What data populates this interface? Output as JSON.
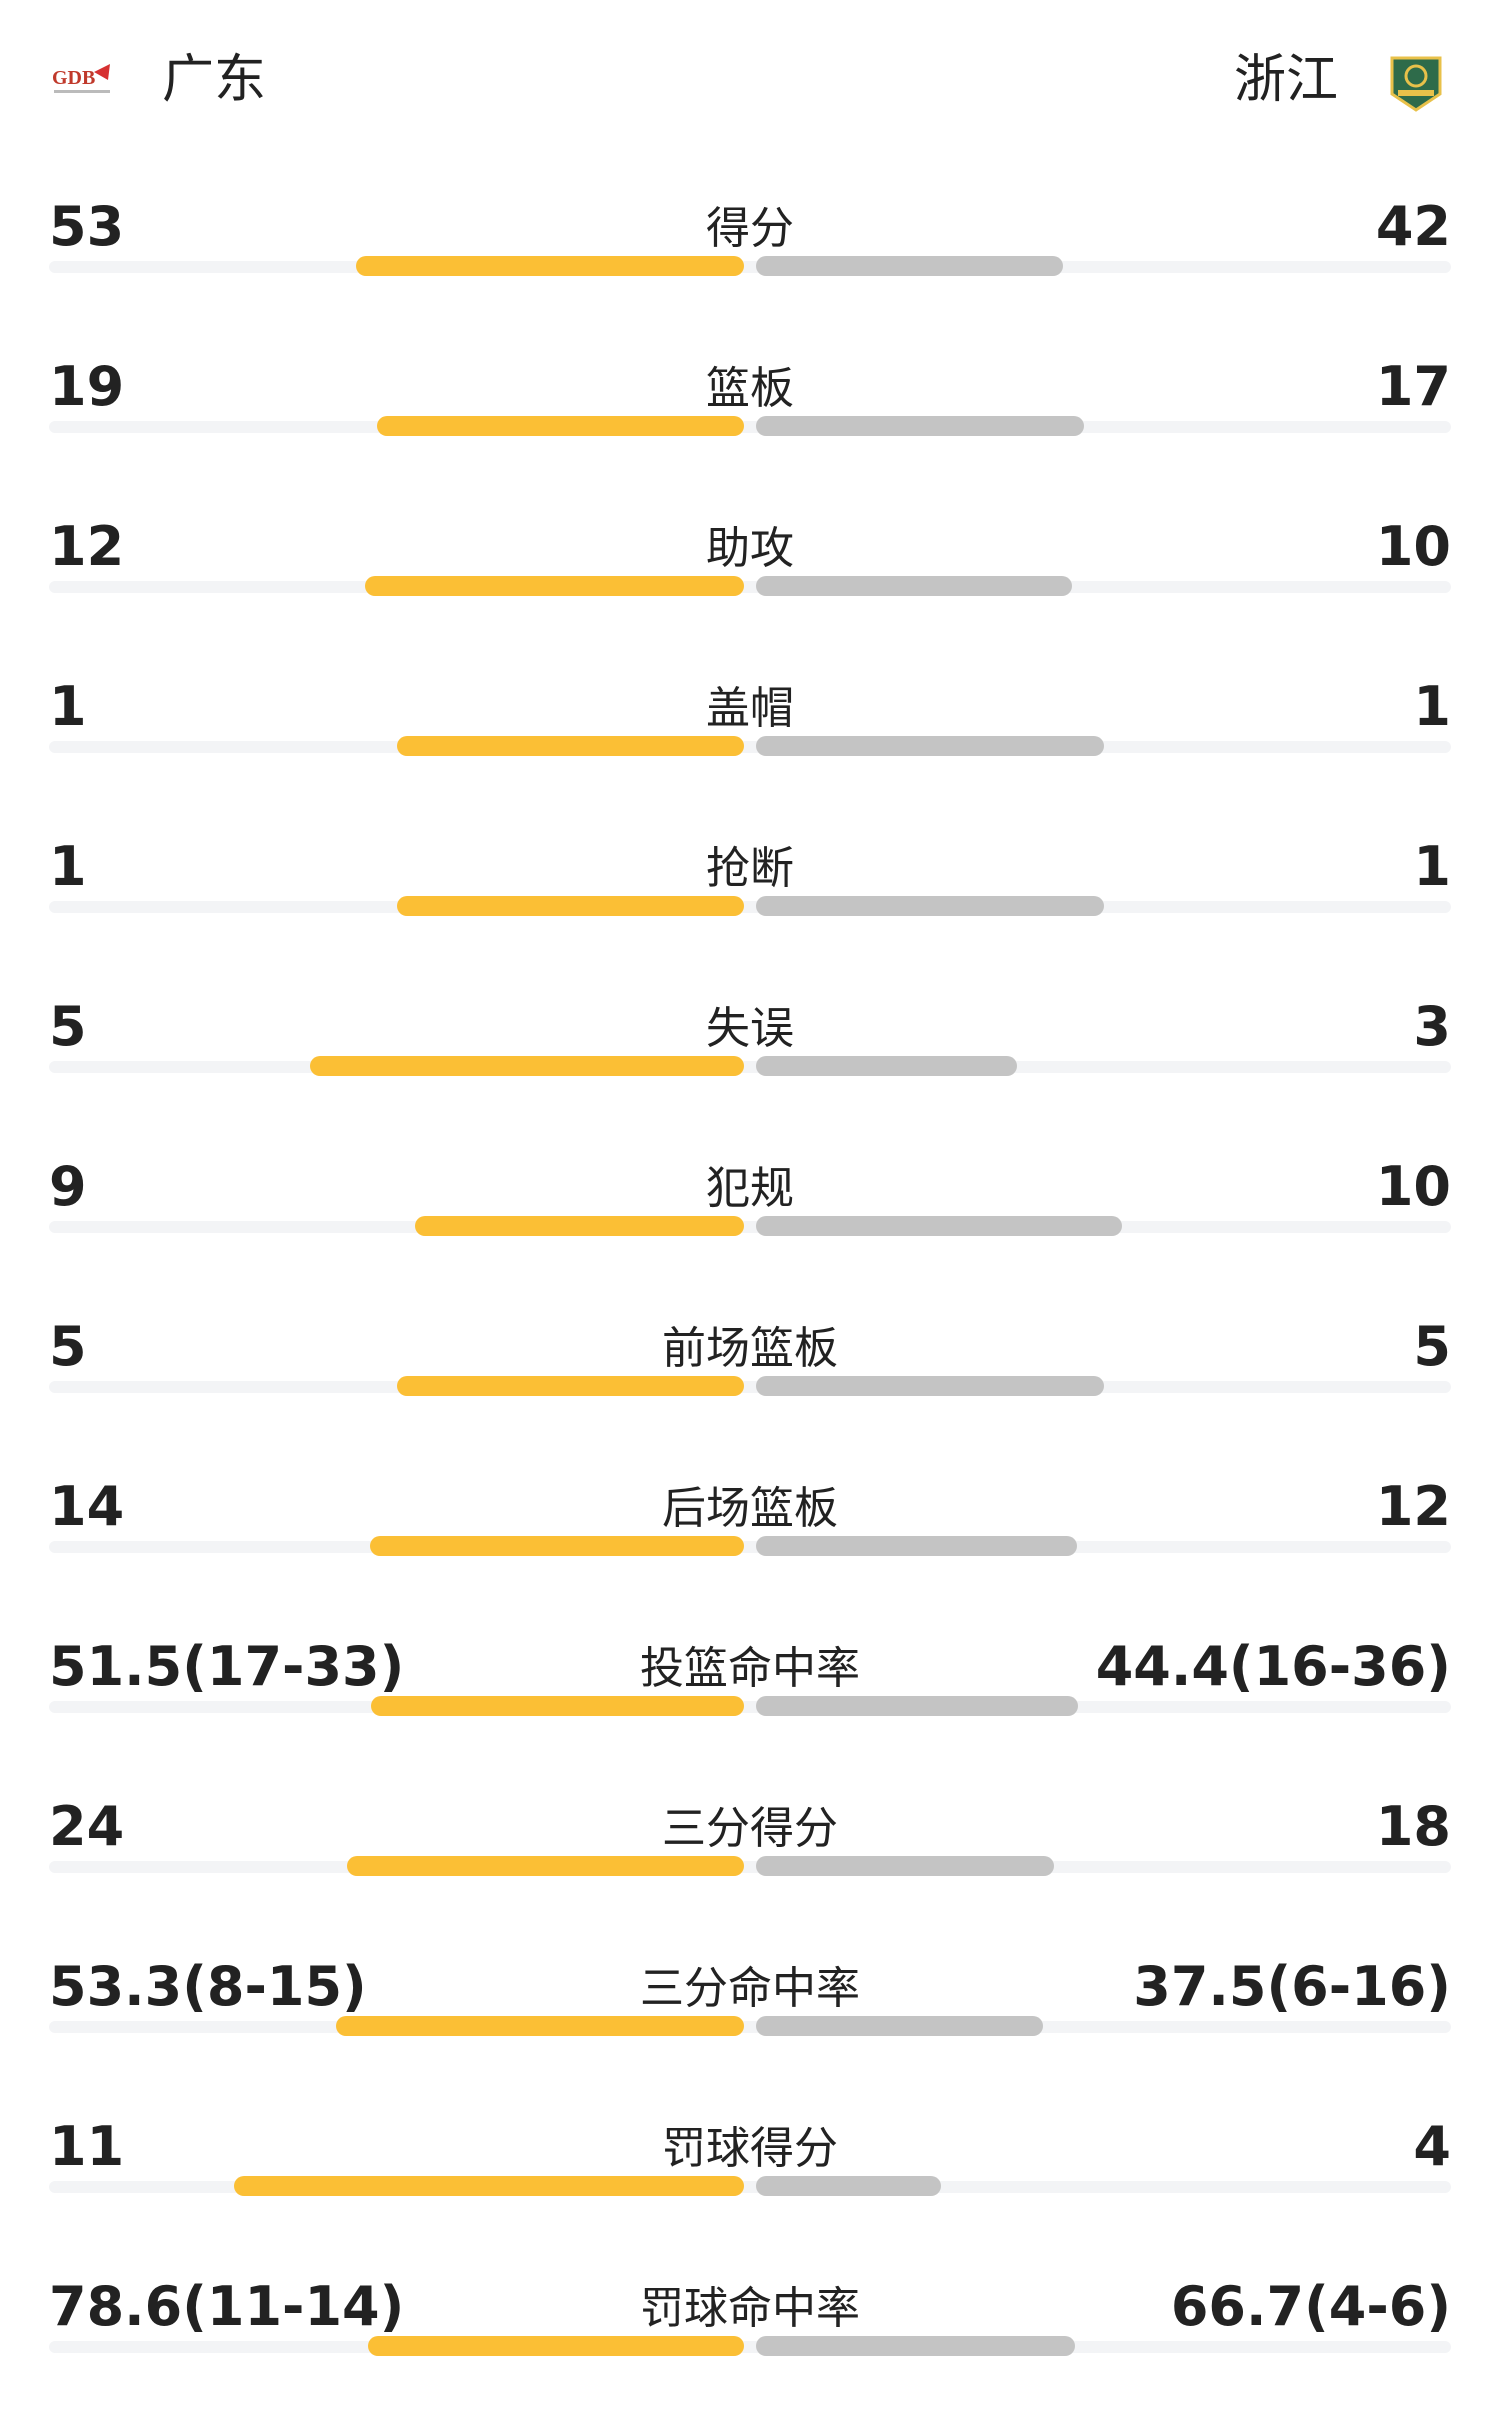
{
  "header": {
    "home": "广东",
    "away": "浙江"
  },
  "stats": [
    {
      "label": "得分",
      "home": 53,
      "away": 42
    },
    {
      "label": "篮板",
      "home": 19,
      "away": 17
    },
    {
      "label": "助攻",
      "home": 12,
      "away": 10
    },
    {
      "label": "盖帽",
      "home": 1,
      "away": 1
    },
    {
      "label": "抢断",
      "home": 1,
      "away": 1
    },
    {
      "label": "失误",
      "home": 5,
      "away": 3
    },
    {
      "label": "犯规",
      "home": 9,
      "away": 10
    },
    {
      "label": "前场篮板",
      "home": 5,
      "away": 5
    },
    {
      "label": "后场篮板",
      "home": 14,
      "away": 12
    },
    {
      "label": "投篮命中率",
      "home": {
        "value": 51.5,
        "label": "51.5(17-33)"
      },
      "away": {
        "value": 44.4,
        "label": "44.4(16-36)"
      }
    },
    {
      "label": "三分得分",
      "home": 24,
      "away": 18
    },
    {
      "label": "三分命中率",
      "home": {
        "value": 53.3,
        "label": "53.3(8-15)"
      },
      "away": {
        "value": 37.5,
        "label": "37.5(6-16)"
      }
    },
    {
      "label": "罚球得分",
      "home": 11,
      "away": 4
    },
    {
      "label": "罚球命中率",
      "home": {
        "value": 78.6,
        "label": "78.6(11-14)"
      },
      "away": {
        "value": 66.7,
        "label": "66.7(4-6)"
      }
    }
  ]
}
